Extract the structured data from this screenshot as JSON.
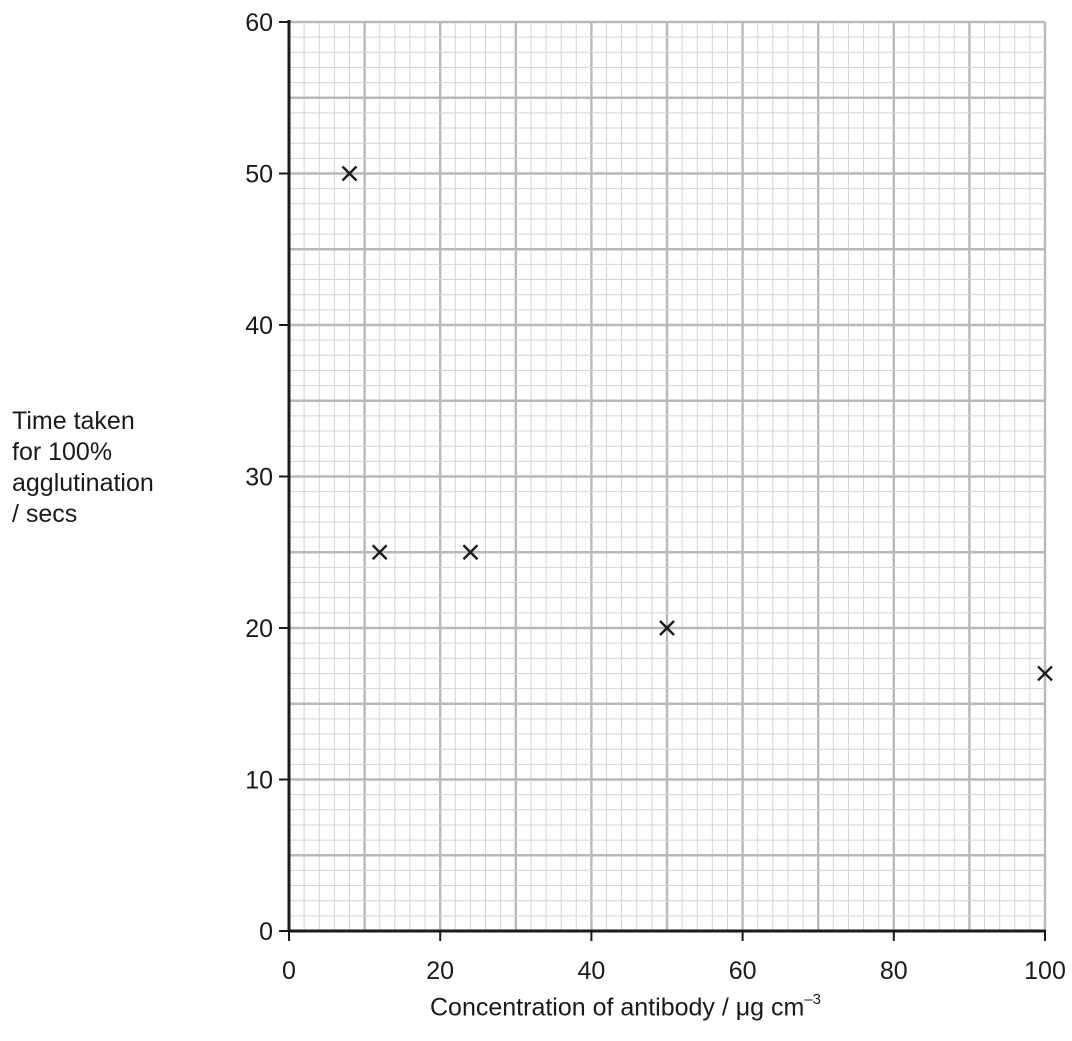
{
  "chart_data": {
    "type": "scatter",
    "title": "",
    "xlabel": {
      "main": "Concentration of antibody / μg cm",
      "exponent": "–3"
    },
    "ylabel_lines": [
      "Time taken",
      "for 100%",
      "agglutination",
      "/ secs"
    ],
    "xlim": [
      0,
      100
    ],
    "ylim": [
      0,
      60
    ],
    "x_ticks": [
      0,
      20,
      40,
      60,
      80,
      100
    ],
    "y_ticks": [
      0,
      10,
      20,
      30,
      40,
      50,
      60
    ],
    "grid": true,
    "grid_minor_x": 2,
    "grid_minor_y": 2,
    "marker": "x",
    "colors": {
      "axis": "#1a1a1a",
      "grid_major": "#b9b9b9",
      "grid_minor": "#d4d4d4",
      "marker": "#1a1a1a"
    },
    "points": [
      {
        "x": 8,
        "y": 50
      },
      {
        "x": 12,
        "y": 25
      },
      {
        "x": 24,
        "y": 25
      },
      {
        "x": 50,
        "y": 20
      },
      {
        "x": 100,
        "y": 17
      }
    ]
  }
}
